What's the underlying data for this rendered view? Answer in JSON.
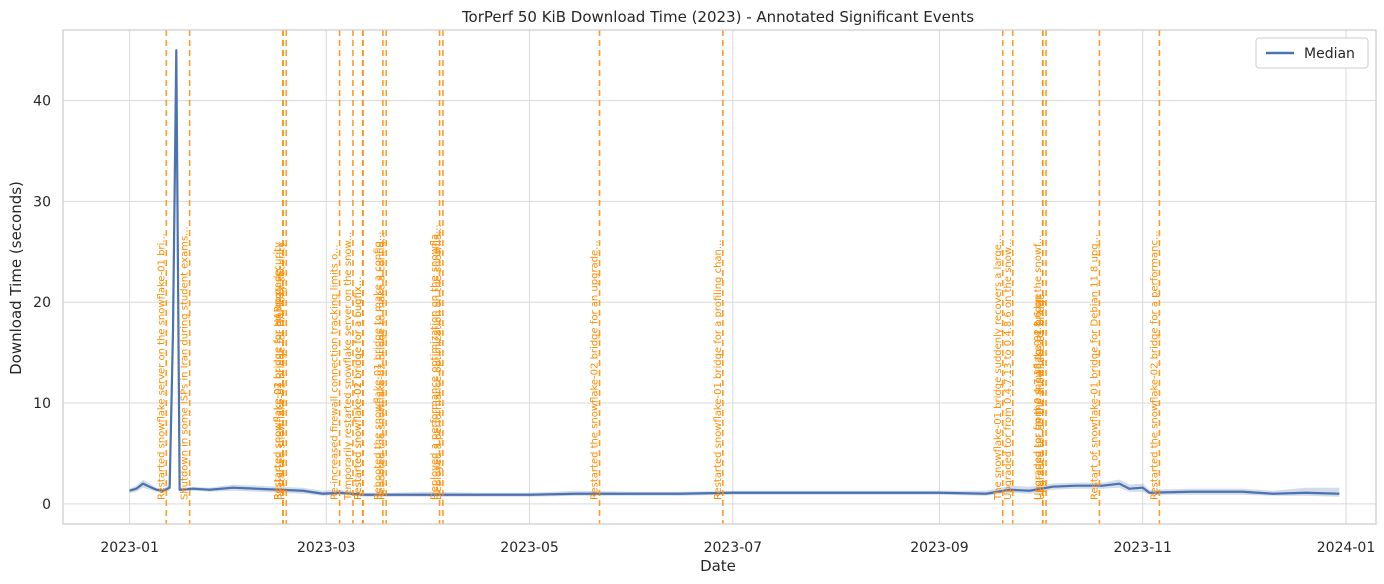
{
  "chart_data": {
    "type": "line",
    "title": "TorPerf 50 KiB Download Time (2023) - Annotated Significant Events",
    "xlabel": "Date",
    "ylabel": "Download Time (seconds)",
    "xlim": [
      "2022-12-12",
      "2024-01-10"
    ],
    "ylim": [
      -2,
      47
    ],
    "grid": true,
    "legend_position": "top-right",
    "x_ticks": [
      "2023-01",
      "2023-03",
      "2023-05",
      "2023-07",
      "2023-09",
      "2023-11",
      "2024-01"
    ],
    "y_ticks": [
      0,
      10,
      20,
      30,
      40
    ],
    "series": [
      {
        "name": "Median",
        "color": "#4c72b0",
        "band_color": "#4c72b0",
        "points": [
          {
            "x": "2023-01-01",
            "y": 1.3,
            "lo": 1.1,
            "hi": 1.5
          },
          {
            "x": "2023-01-03",
            "y": 1.5,
            "lo": 1.2,
            "hi": 1.8
          },
          {
            "x": "2023-01-05",
            "y": 2.0,
            "lo": 1.6,
            "hi": 2.4
          },
          {
            "x": "2023-01-07",
            "y": 1.7,
            "lo": 1.4,
            "hi": 2.0
          },
          {
            "x": "2023-01-09",
            "y": 1.4,
            "lo": 1.2,
            "hi": 1.6
          },
          {
            "x": "2023-01-11",
            "y": 1.3,
            "lo": 1.1,
            "hi": 1.5
          },
          {
            "x": "2023-01-13",
            "y": 1.6,
            "lo": 1.3,
            "hi": 1.9
          },
          {
            "x": "2023-01-14",
            "y": 17.0,
            "lo": 15.0,
            "hi": 19.0
          },
          {
            "x": "2023-01-15",
            "y": 45.0,
            "lo": 44.0,
            "hi": 46.0
          },
          {
            "x": "2023-01-16",
            "y": 1.4,
            "lo": 1.2,
            "hi": 1.6
          },
          {
            "x": "2023-01-20",
            "y": 1.5,
            "lo": 1.3,
            "hi": 1.7
          },
          {
            "x": "2023-01-25",
            "y": 1.4,
            "lo": 1.2,
            "hi": 1.6
          },
          {
            "x": "2023-02-01",
            "y": 1.6,
            "lo": 1.3,
            "hi": 1.9
          },
          {
            "x": "2023-02-08",
            "y": 1.5,
            "lo": 1.2,
            "hi": 1.8
          },
          {
            "x": "2023-02-15",
            "y": 1.4,
            "lo": 1.1,
            "hi": 1.7
          },
          {
            "x": "2023-02-22",
            "y": 1.3,
            "lo": 1.0,
            "hi": 1.6
          },
          {
            "x": "2023-02-28",
            "y": 1.0,
            "lo": 0.8,
            "hi": 1.3
          },
          {
            "x": "2023-03-05",
            "y": 1.1,
            "lo": 0.9,
            "hi": 1.4
          },
          {
            "x": "2023-03-12",
            "y": 0.9,
            "lo": 0.7,
            "hi": 1.1
          },
          {
            "x": "2023-03-20",
            "y": 0.9,
            "lo": 0.7,
            "hi": 1.1
          },
          {
            "x": "2023-04-01",
            "y": 0.9,
            "lo": 0.7,
            "hi": 1.2
          },
          {
            "x": "2023-04-15",
            "y": 0.9,
            "lo": 0.7,
            "hi": 1.1
          },
          {
            "x": "2023-05-01",
            "y": 0.9,
            "lo": 0.7,
            "hi": 1.1
          },
          {
            "x": "2023-05-15",
            "y": 1.0,
            "lo": 0.8,
            "hi": 1.3
          },
          {
            "x": "2023-06-01",
            "y": 1.0,
            "lo": 0.8,
            "hi": 1.2
          },
          {
            "x": "2023-06-15",
            "y": 1.0,
            "lo": 0.8,
            "hi": 1.2
          },
          {
            "x": "2023-07-01",
            "y": 1.1,
            "lo": 0.9,
            "hi": 1.3
          },
          {
            "x": "2023-07-15",
            "y": 1.1,
            "lo": 0.9,
            "hi": 1.3
          },
          {
            "x": "2023-08-01",
            "y": 1.1,
            "lo": 0.9,
            "hi": 1.3
          },
          {
            "x": "2023-08-15",
            "y": 1.1,
            "lo": 0.9,
            "hi": 1.3
          },
          {
            "x": "2023-09-01",
            "y": 1.1,
            "lo": 0.9,
            "hi": 1.3
          },
          {
            "x": "2023-09-15",
            "y": 1.0,
            "lo": 0.8,
            "hi": 1.3
          },
          {
            "x": "2023-09-22",
            "y": 1.4,
            "lo": 1.1,
            "hi": 1.8
          },
          {
            "x": "2023-09-28",
            "y": 1.3,
            "lo": 1.0,
            "hi": 1.7
          },
          {
            "x": "2023-10-05",
            "y": 1.7,
            "lo": 1.4,
            "hi": 2.0
          },
          {
            "x": "2023-10-12",
            "y": 1.8,
            "lo": 1.5,
            "hi": 2.1
          },
          {
            "x": "2023-10-20",
            "y": 1.8,
            "lo": 1.5,
            "hi": 2.1
          },
          {
            "x": "2023-10-25",
            "y": 2.0,
            "lo": 1.6,
            "hi": 2.4
          },
          {
            "x": "2023-10-28",
            "y": 1.5,
            "lo": 1.2,
            "hi": 1.9
          },
          {
            "x": "2023-11-01",
            "y": 1.6,
            "lo": 1.2,
            "hi": 2.0
          },
          {
            "x": "2023-11-03",
            "y": 1.1,
            "lo": 0.9,
            "hi": 1.4
          },
          {
            "x": "2023-11-15",
            "y": 1.2,
            "lo": 0.9,
            "hi": 1.5
          },
          {
            "x": "2023-12-01",
            "y": 1.2,
            "lo": 0.9,
            "hi": 1.5
          },
          {
            "x": "2023-12-10",
            "y": 1.0,
            "lo": 0.8,
            "hi": 1.3
          },
          {
            "x": "2023-12-20",
            "y": 1.1,
            "lo": 0.8,
            "hi": 1.6
          },
          {
            "x": "2023-12-30",
            "y": 1.0,
            "lo": 0.7,
            "hi": 1.6
          }
        ]
      }
    ],
    "annotations": [
      {
        "date": "2023-01-12",
        "text": "Restarted snowflake server on the snowflake-01 bri..."
      },
      {
        "date": "2023-01-19",
        "text": "Shutdown in some ISPs in Iran during student exams..."
      },
      {
        "date": "2023-02-16",
        "text": "Restarted snowflake-02 bridge for an upgrade."
      },
      {
        "date": "2023-02-16",
        "text": "Restarted snowflake-01 bridge for HAProxy security"
      },
      {
        "date": "2023-02-17",
        "text": "Restarted snowflake-02 bridge for HAProxy security"
      },
      {
        "date": "2023-03-05",
        "text": "Re-increased firewall connection tracking limits o..."
      },
      {
        "date": "2023-03-09",
        "text": "Temporarily restarted snowflake server on the snow..."
      },
      {
        "date": "2023-03-12",
        "text": "Restarted snowflake-02 bridge for a bugfix..."
      },
      {
        "date": "2023-03-12",
        "text": "Restarted snowflake-01 bridge for a bugfix..."
      },
      {
        "date": "2023-03-18",
        "text": "Rebooted the snowflake-01 bridge to make a config..."
      },
      {
        "date": "2023-03-19",
        "text": "Rebooted the snowflake-02 bridge to make a config..."
      },
      {
        "date": "2023-04-04",
        "text": "Deployed a performance optimization on the snowfla..."
      },
      {
        "date": "2023-04-05",
        "text": "Deployed a performance optimization on the snowfla..."
      },
      {
        "date": "2023-05-22",
        "text": "Restarted the snowflake-02 bridge for an upgrade..."
      },
      {
        "date": "2023-06-28",
        "text": "Restarted snowflake-01 bridge for a profiling chan..."
      },
      {
        "date": "2023-09-20",
        "text": "The snowflake-01 bridge suddenly recovers a large..."
      },
      {
        "date": "2023-09-23",
        "text": "Upgraded tor from 0.4.7.13 to 0.4.8.6 on the snow..."
      },
      {
        "date": "2023-10-02",
        "text": "Upgraded tor from 0.4.7.13 to 0.4.8.6 on the snowf..."
      },
      {
        "date": "2023-10-02",
        "text": "Upgraded tor on the snowflake-02 bridge"
      },
      {
        "date": "2023-10-03",
        "text": "Upgraded tor on the snowflake-01 bridge"
      },
      {
        "date": "2023-10-19",
        "text": "Restart of snowflake-01 bridge for Debian 11 8 upg..."
      },
      {
        "date": "2023-11-06",
        "text": "Restarted the snowflake-02 bridge for a performanc..."
      }
    ]
  }
}
